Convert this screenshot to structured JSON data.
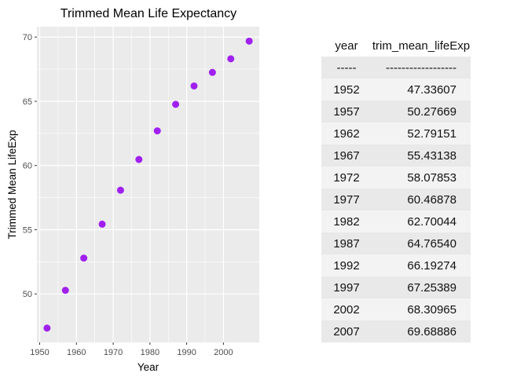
{
  "chart_data": {
    "type": "scatter",
    "title": "Trimmed Mean Life Expectancy",
    "xlabel": "Year",
    "ylabel": "Trimmed Mean LifeExp",
    "x": [
      1952,
      1957,
      1962,
      1967,
      1972,
      1977,
      1982,
      1987,
      1992,
      1997,
      2002,
      2007
    ],
    "y": [
      47.33607,
      50.27669,
      52.79151,
      55.43138,
      58.07853,
      60.46878,
      62.70044,
      64.7654,
      66.19274,
      67.25389,
      68.30965,
      69.68886
    ],
    "xlim": [
      1949.25,
      2009.75
    ],
    "ylim": [
      46.22,
      70.81
    ],
    "xticks": [
      1950,
      1960,
      1970,
      1980,
      1990,
      2000
    ],
    "yticks": [
      50,
      55,
      60,
      65,
      70
    ],
    "grid": true,
    "point_color": "#A020F0",
    "panel_color": "#EBEBEB"
  },
  "table": {
    "headers": [
      "year",
      "trim_mean_lifeExp"
    ],
    "separator": [
      "-----",
      "------------------"
    ],
    "rows": [
      [
        "1952",
        "47.33607"
      ],
      [
        "1957",
        "50.27669"
      ],
      [
        "1962",
        "52.79151"
      ],
      [
        "1967",
        "55.43138"
      ],
      [
        "1972",
        "58.07853"
      ],
      [
        "1977",
        "60.46878"
      ],
      [
        "1982",
        "62.70044"
      ],
      [
        "1987",
        "64.76540"
      ],
      [
        "1992",
        "66.19274"
      ],
      [
        "1997",
        "67.25389"
      ],
      [
        "2002",
        "68.30965"
      ],
      [
        "2007",
        "69.68886"
      ]
    ]
  }
}
